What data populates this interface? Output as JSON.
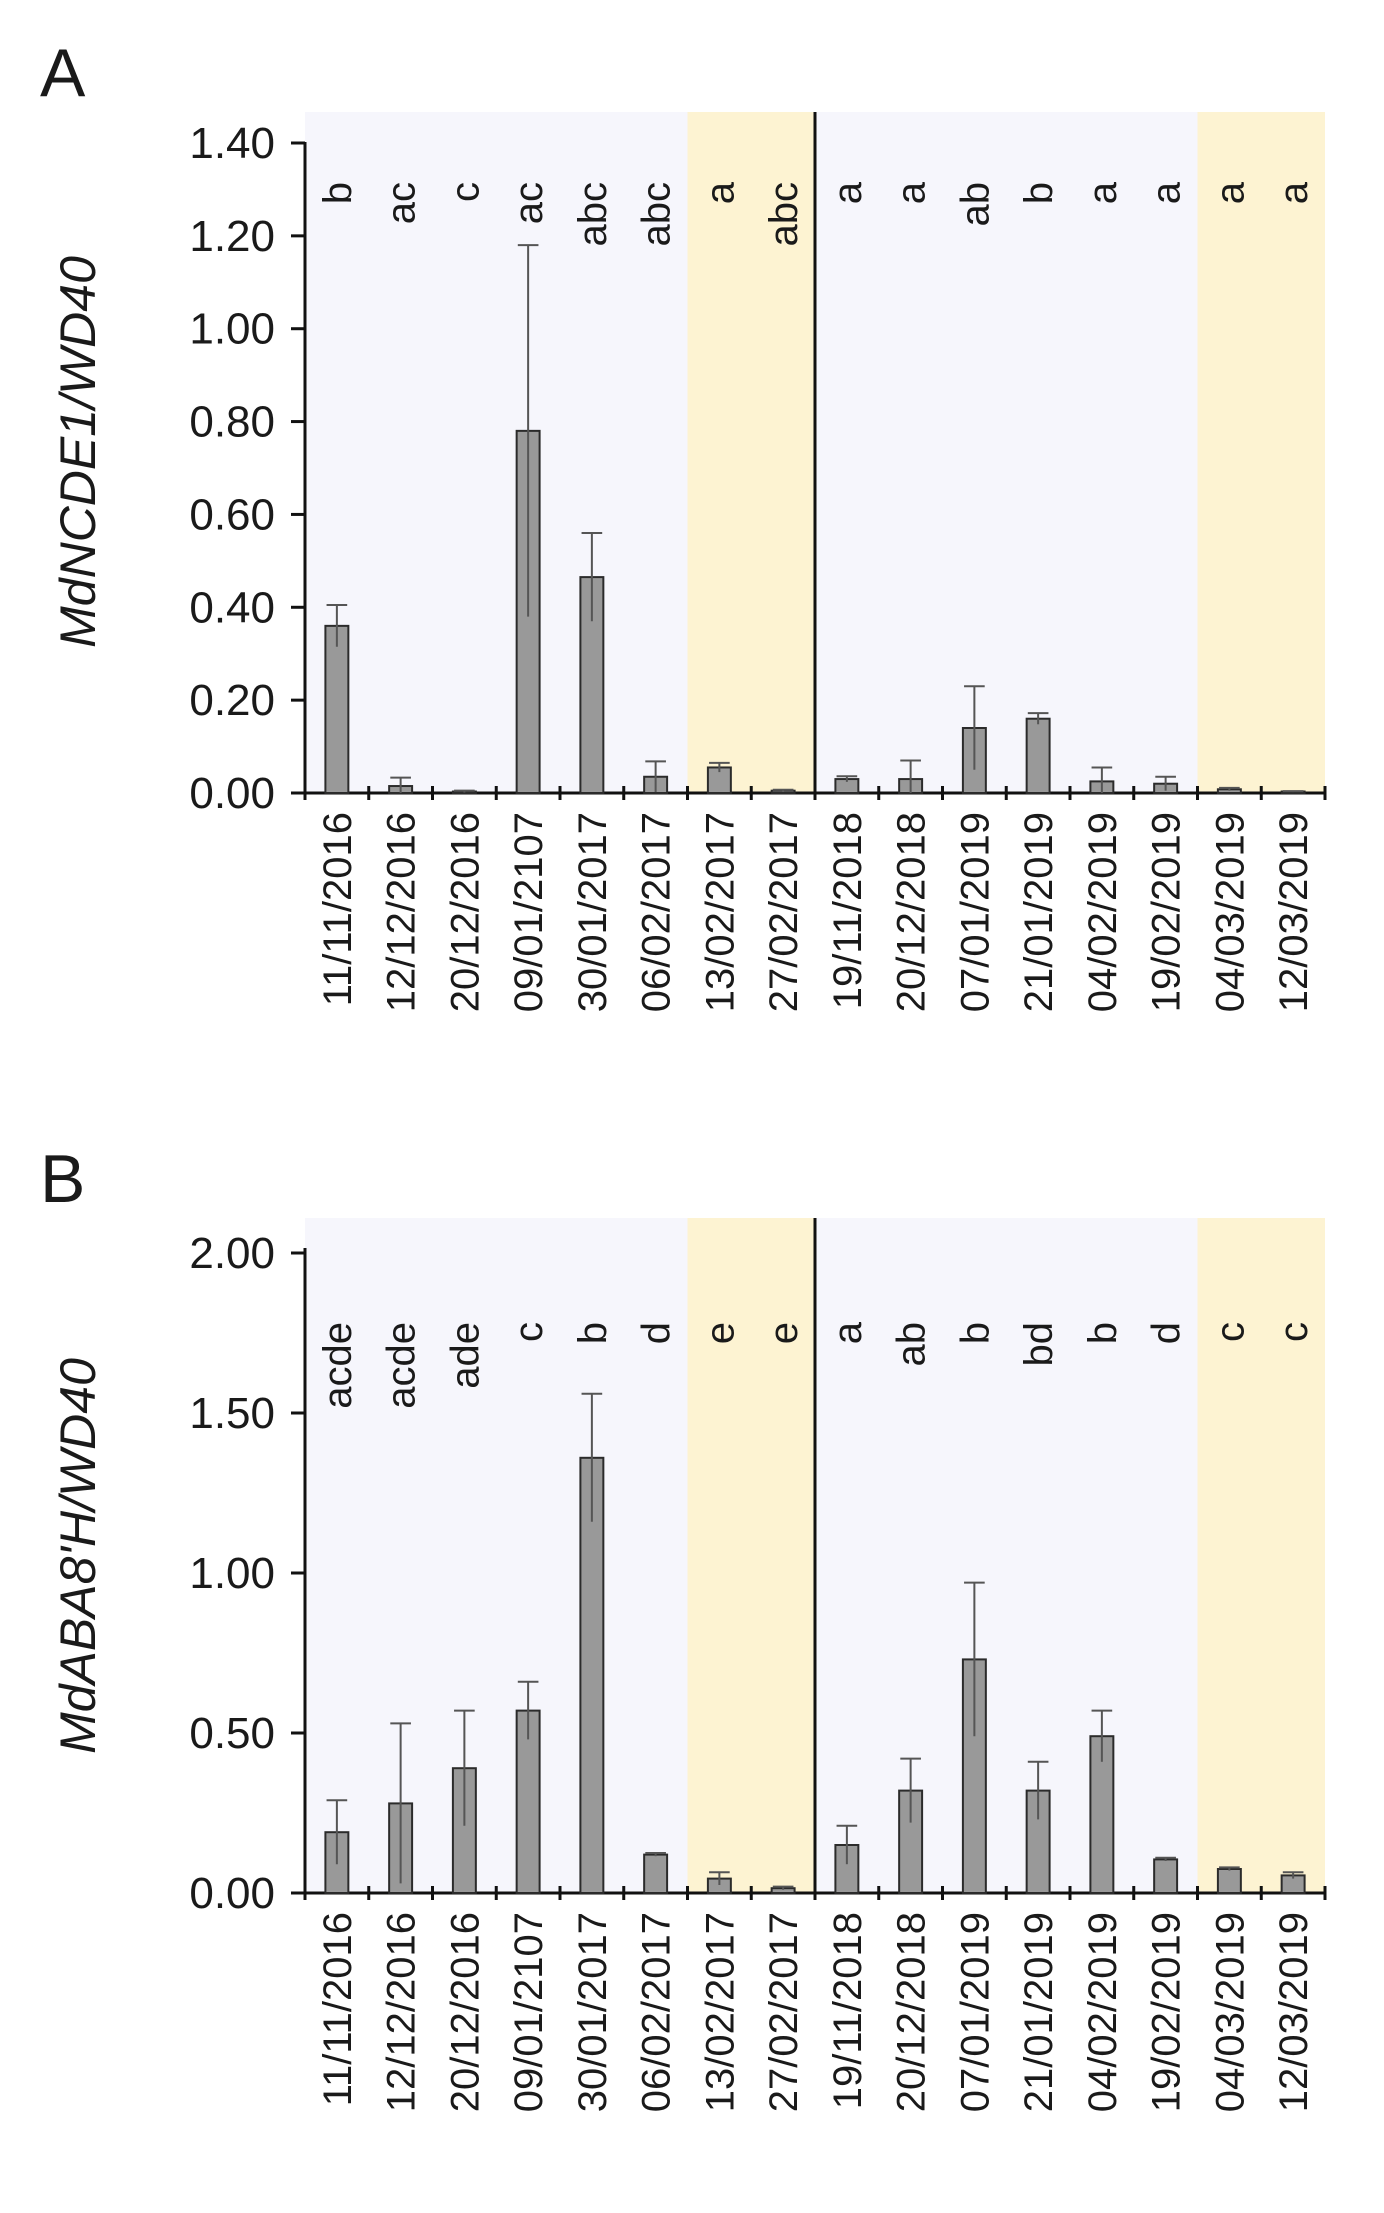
{
  "chart_data": [
    {
      "type": "bar",
      "panel_label": "A",
      "ylabel": "MdNCDE1/WD40",
      "ylim": [
        0,
        1.4
      ],
      "yticks": [
        "0.00",
        "0.20",
        "0.40",
        "0.60",
        "0.80",
        "1.00",
        "1.20",
        "1.40"
      ],
      "categories": [
        "11/11/2016",
        "12/12/2016",
        "20/12/2016",
        "09/01/2107",
        "30/01/2017",
        "06/02/2017",
        "13/02/2017",
        "27/02/2017",
        "19/11/2018",
        "20/12/2018",
        "07/01/2019",
        "21/01/2019",
        "04/02/2019",
        "19/02/2019",
        "04/03/2019",
        "12/03/2019"
      ],
      "values": [
        0.36,
        0.015,
        0.003,
        0.78,
        0.465,
        0.035,
        0.055,
        0.005,
        0.03,
        0.03,
        0.14,
        0.16,
        0.025,
        0.02,
        0.008,
        0.003
      ],
      "errors": [
        0.045,
        0.018,
        0.002,
        0.4,
        0.095,
        0.033,
        0.01,
        0.002,
        0.006,
        0.04,
        0.09,
        0.012,
        0.03,
        0.015,
        0.003,
        0.001
      ],
      "significance": [
        "b",
        "ac",
        "c",
        "ac",
        "abc",
        "abc",
        "a",
        "abc",
        "a",
        "a",
        "ab",
        "b",
        "a",
        "a",
        "a",
        "a"
      ],
      "highlight_ranges": [
        [
          6,
          7
        ],
        [
          14,
          15
        ]
      ],
      "season_divider_after_index": 7,
      "colors": {
        "bar": "#999999",
        "bar_edge": "#2b2b2b",
        "background": "#f6f6fc",
        "highlight": "#fdf3d2"
      }
    },
    {
      "type": "bar",
      "panel_label": "B",
      "ylabel": "MdABA8'H/WD40",
      "ylim": [
        0,
        2.0
      ],
      "yticks": [
        "0.00",
        "0.50",
        "1.00",
        "1.50",
        "2.00"
      ],
      "categories": [
        "11/11/2016",
        "12/12/2016",
        "20/12/2016",
        "09/01/2107",
        "30/01/2017",
        "06/02/2017",
        "13/02/2017",
        "27/02/2017",
        "19/11/2018",
        "20/12/2018",
        "07/01/2019",
        "21/01/2019",
        "04/02/2019",
        "19/02/2019",
        "04/03/2019",
        "12/03/2019"
      ],
      "values": [
        0.19,
        0.28,
        0.39,
        0.57,
        1.36,
        0.12,
        0.045,
        0.015,
        0.15,
        0.32,
        0.73,
        0.32,
        0.49,
        0.105,
        0.075,
        0.055
      ],
      "errors": [
        0.1,
        0.25,
        0.18,
        0.09,
        0.2,
        0.005,
        0.02,
        0.005,
        0.06,
        0.1,
        0.24,
        0.09,
        0.08,
        0.005,
        0.005,
        0.01
      ],
      "significance": [
        "acde",
        "acde",
        "ade",
        "c",
        "b",
        "d",
        "e",
        "e",
        "a",
        "ab",
        "b",
        "bd",
        "b",
        "d",
        "c",
        "c"
      ],
      "highlight_ranges": [
        [
          6,
          7
        ],
        [
          14,
          15
        ]
      ],
      "season_divider_after_index": 7,
      "colors": {
        "bar": "#999999",
        "bar_edge": "#2b2b2b",
        "background": "#f6f6fc",
        "highlight": "#fdf3d2"
      }
    }
  ]
}
